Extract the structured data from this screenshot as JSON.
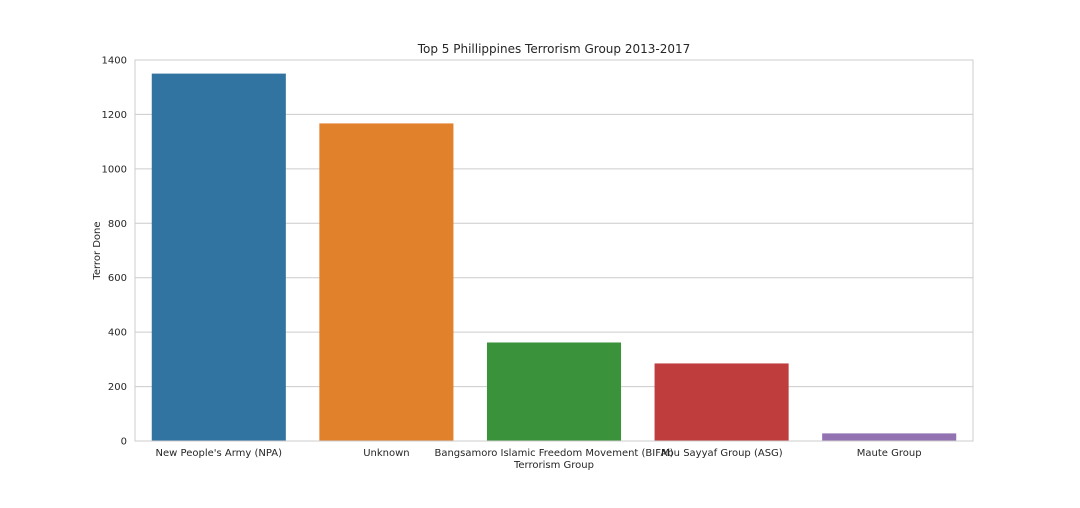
{
  "chart_data": {
    "type": "bar",
    "title": "Top 5 Phillippines Terrorism Group 2013-2017",
    "xlabel": "Terrorism Group",
    "ylabel": "Terror Done",
    "categories": [
      "New People's Army (NPA)",
      "Unknown",
      "Bangsamoro Islamic Freedom Movement (BIFM)",
      "Abu Sayyaf Group (ASG)",
      "Maute Group"
    ],
    "values": [
      1350,
      1167,
      362,
      285,
      28
    ],
    "colors": [
      "#3274a1",
      "#e1812c",
      "#3a923a",
      "#c03d3e",
      "#9372b2"
    ],
    "ylim": [
      0,
      1400
    ],
    "yticks": [
      0,
      200,
      400,
      600,
      800,
      1000,
      1200,
      1400
    ],
    "ytick_labels": [
      "0",
      "200",
      "400",
      "600",
      "800",
      "1000",
      "1200",
      "1400"
    ],
    "grid": "horizontal",
    "background": "#ffffff",
    "gridline_color": "#cccccc",
    "legend": "none"
  }
}
